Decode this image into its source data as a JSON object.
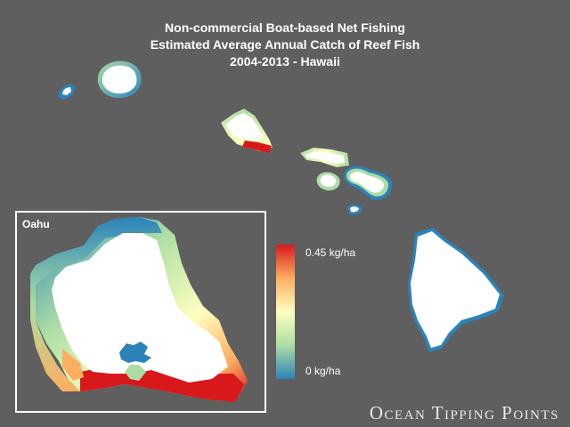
{
  "title": {
    "line1": "Non-commercial Boat-based Net Fishing",
    "line2": "Estimated Average Annual Catch of Reef Fish",
    "line3": "2004-2013 - Hawaii"
  },
  "inset": {
    "label": "Oahu"
  },
  "legend": {
    "max_label": "0.45 kg/ha",
    "min_label": "0 kg/ha",
    "min_value": 0,
    "max_value": 0.45,
    "unit": "kg/ha",
    "colors": [
      "#d7191c",
      "#fdae61",
      "#ffffbf",
      "#abdda4",
      "#2b83ba"
    ]
  },
  "brand": "Ocean Tipping Points",
  "colors": {
    "background": "#5f5f5f",
    "land": "#ffffff"
  },
  "islands": [
    "niihau",
    "kauai",
    "oahu",
    "molokai",
    "lanai",
    "maui",
    "kahoolawe",
    "hawaii"
  ]
}
